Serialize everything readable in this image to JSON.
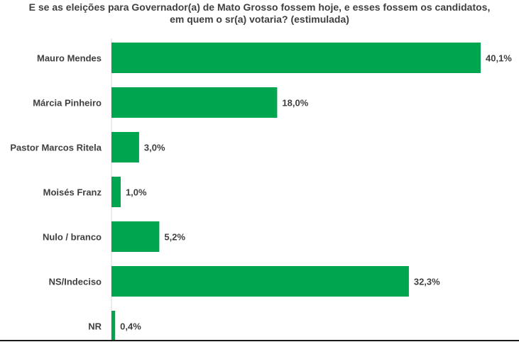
{
  "chart_data": {
    "type": "bar",
    "orientation": "horizontal",
    "title_lines": [
      "E se as eleições para Governador(a) de Mato Grosso fossem hoje, e esses fossem os candidatos,",
      "em quem o sr(a) votaria? (estimulada)"
    ],
    "categories": [
      "Mauro Mendes",
      "Márcia Pinheiro",
      "Pastor Marcos Ritela",
      "Moisés Franz",
      "Nulo / branco",
      "NS/Indeciso",
      "NR"
    ],
    "values": [
      40.1,
      18.0,
      3.0,
      1.0,
      5.2,
      32.3,
      0.4
    ],
    "value_labels": [
      "40,1%",
      "18,0%",
      "3,0%",
      "1,0%",
      "5,2%",
      "32,3%",
      "0,4%"
    ],
    "bar_color": "#00a550",
    "xlim": [
      0,
      40.1
    ],
    "grid": false,
    "legend": "none"
  }
}
